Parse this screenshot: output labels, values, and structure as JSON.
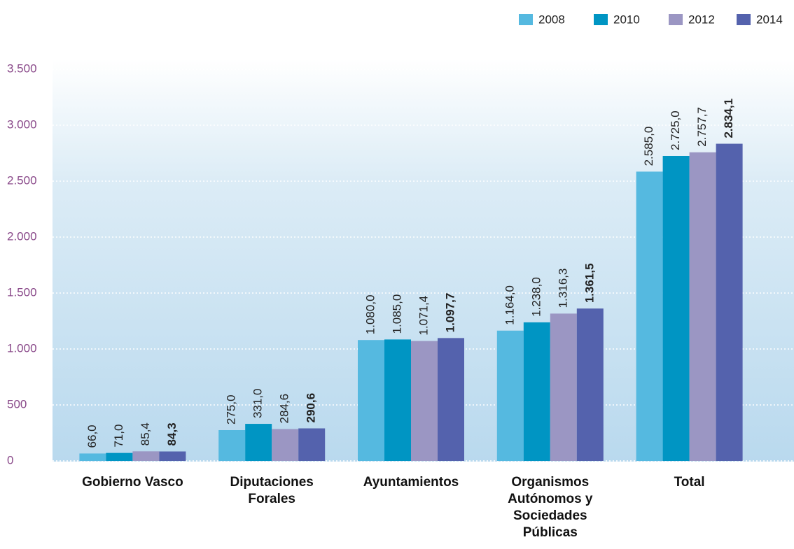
{
  "chart_data": {
    "type": "bar",
    "categories": [
      "Gobierno Vasco",
      "Diputaciones Forales",
      "Ayuntamientos",
      "Organismos Autónomos y Sociedades Públicas",
      "Total"
    ],
    "series": [
      {
        "name": "2008",
        "color": "#55b9e0",
        "values": [
          66.0,
          275.0,
          1080.0,
          1164.0,
          2585.0
        ],
        "value_labels": [
          "66,0",
          "275,0",
          "1.080,0",
          "1.164,0",
          "2.585,0"
        ]
      },
      {
        "name": "2010",
        "color": "#0095c3",
        "values": [
          71.0,
          331.0,
          1085.0,
          1238.0,
          2725.0
        ],
        "value_labels": [
          "71,0",
          "331,0",
          "1.085,0",
          "1.238,0",
          "2.725,0"
        ]
      },
      {
        "name": "2012",
        "color": "#9b96c3",
        "values": [
          85.4,
          284.6,
          1071.4,
          1316.3,
          2757.7
        ],
        "value_labels": [
          "85,4",
          "284,6",
          "1.071,4",
          "1.316,3",
          "2.757,7"
        ]
      },
      {
        "name": "2014",
        "color": "#5462ad",
        "values": [
          84.3,
          290.6,
          1097.7,
          1361.5,
          2834.1
        ],
        "value_labels": [
          "84,3",
          "290,6",
          "1.097,7",
          "1.361,5",
          "2.834,1"
        ]
      }
    ],
    "ylim": [
      0,
      3500
    ],
    "yticks": [
      0,
      500,
      {
        "value": 1000,
        "label": "1.000"
      },
      {
        "value": 1500,
        "label": "1.500"
      },
      {
        "value": 2000,
        "label": "2.000"
      },
      {
        "value": 2500,
        "label": "2.500"
      },
      {
        "value": 3000,
        "label": "3.000"
      },
      {
        "value": 3500,
        "label": "3.500"
      }
    ],
    "grid": true,
    "legend": "top-right"
  }
}
